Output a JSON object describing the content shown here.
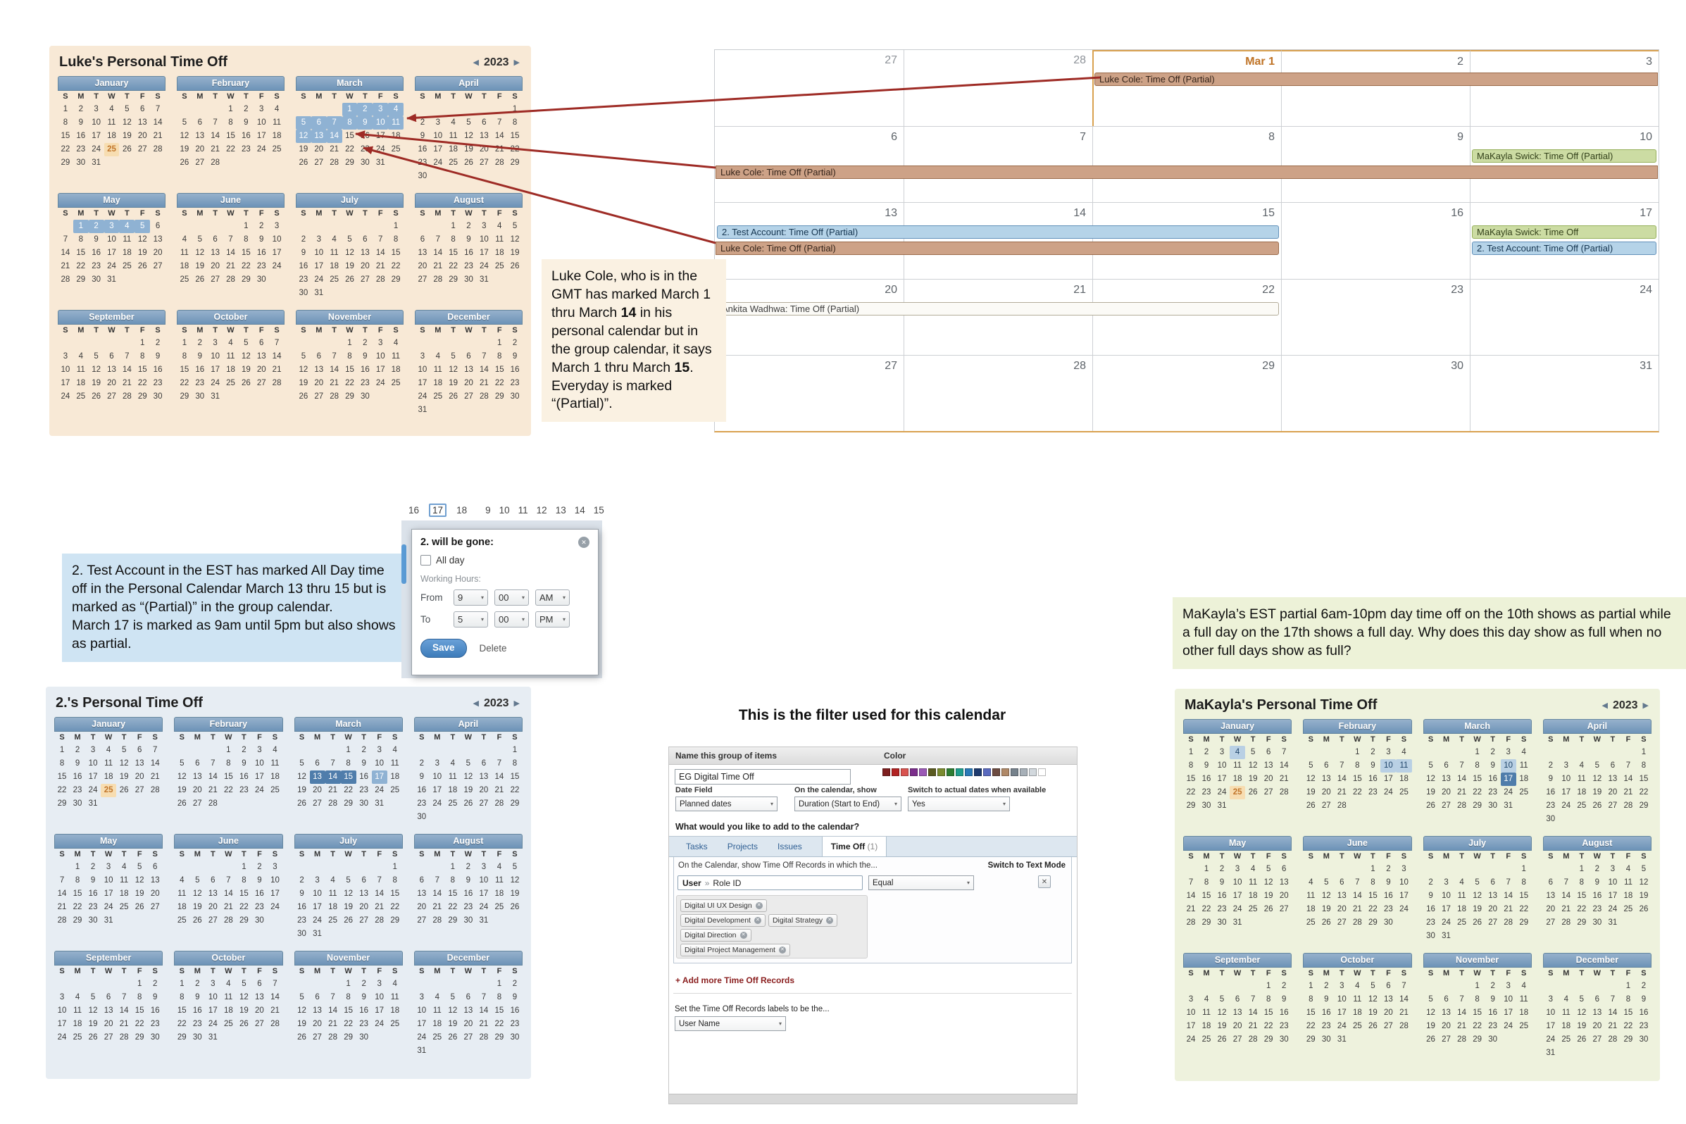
{
  "colors": {
    "page_bg": "#ffffff",
    "luke_cal_bg": "#f8e9d6",
    "test_cal_bg": "#e7edf3",
    "makayla_cal_bg": "#eef2dd",
    "note_luke_bg": "#faf1e2",
    "note_test_bg": "#cfe4f3",
    "note_makayla_bg": "#edf2d8",
    "month_header_blue": "#7b9cbe",
    "highlight_mid": "#8fb2d3",
    "highlight_full": "#4f7dab",
    "highlight_light": "#b9d0e4",
    "today_orange": "#c1752a",
    "arrow_red": "#9e2b25",
    "month_accent_orange": "#d9a14f",
    "events": {
      "luke": {
        "bg": "#cda287",
        "border": "#9b6a49",
        "text": "#35241a"
      },
      "makayla": {
        "bg": "#ccdca3",
        "border": "#96b05b",
        "text": "#33411a"
      },
      "test": {
        "bg": "#b5d3e8",
        "border": "#6291ba",
        "text": "#14344f"
      },
      "plain": {
        "bg": "#fbfaf6",
        "border": "#b3ac99",
        "text": "#3c3c3c"
      }
    }
  },
  "dow": [
    "S",
    "M",
    "T",
    "W",
    "T",
    "F",
    "S"
  ],
  "month_defs": [
    {
      "name": "January",
      "start": 0,
      "days": 31
    },
    {
      "name": "February",
      "start": 3,
      "days": 28
    },
    {
      "name": "March",
      "start": 3,
      "days": 31
    },
    {
      "name": "April",
      "start": 6,
      "days": 30
    },
    {
      "name": "May",
      "start": 1,
      "days": 31
    },
    {
      "name": "June",
      "start": 4,
      "days": 30
    },
    {
      "name": "July",
      "start": 6,
      "days": 31
    },
    {
      "name": "August",
      "start": 2,
      "days": 31
    },
    {
      "name": "September",
      "start": 5,
      "days": 30
    },
    {
      "name": "October",
      "start": 0,
      "days": 31
    },
    {
      "name": "November",
      "start": 3,
      "days": 30
    },
    {
      "name": "December",
      "start": 5,
      "days": 31
    }
  ],
  "calendars": {
    "luke": {
      "title": "Luke's Personal Time Off",
      "year": "2023",
      "highlights": [
        {
          "month": "January",
          "days": [
            25
          ],
          "style": "today"
        },
        {
          "month": "March",
          "days": [
            1,
            2,
            3,
            4,
            5,
            6,
            7,
            8,
            9,
            10,
            11,
            12,
            13,
            14
          ],
          "style": "hl"
        },
        {
          "month": "May",
          "days": [
            1,
            2,
            3,
            4,
            5
          ],
          "style": "hl"
        }
      ]
    },
    "test": {
      "title": "2.'s Personal Time Off",
      "year": "2023",
      "highlights": [
        {
          "month": "January",
          "days": [
            25
          ],
          "style": "today"
        },
        {
          "month": "March",
          "days": [
            13,
            14,
            15
          ],
          "style": "full"
        },
        {
          "month": "March",
          "days": [
            17
          ],
          "style": "hl"
        }
      ]
    },
    "makayla": {
      "title": "MaKayla's Personal Time Off",
      "year": "2023",
      "highlights": [
        {
          "month": "January",
          "days": [
            25
          ],
          "style": "today"
        },
        {
          "month": "January",
          "days": [
            4
          ],
          "style": "lt"
        },
        {
          "month": "February",
          "days": [
            10,
            11
          ],
          "style": "lt"
        },
        {
          "month": "March",
          "days": [
            10
          ],
          "style": "lt"
        },
        {
          "month": "March",
          "days": [
            17
          ],
          "style": "full"
        }
      ]
    }
  },
  "group_calendar": {
    "weeks": [
      {
        "days": [
          {
            "n": "27",
            "outside": true
          },
          {
            "n": "28",
            "outside": true
          },
          {
            "n": "Mar 1",
            "accent": true
          },
          {
            "n": "2"
          },
          {
            "n": "3"
          }
        ],
        "events": [
          {
            "label": "Luke Cole: Time Off (Partial)",
            "type": "luke",
            "start": 2,
            "end": 4,
            "slot": 0,
            "br": true
          }
        ]
      },
      {
        "days": [
          {
            "n": "6"
          },
          {
            "n": "7"
          },
          {
            "n": "8"
          },
          {
            "n": "9"
          },
          {
            "n": "10"
          }
        ],
        "events": [
          {
            "label": "MaKayla Swick: Time Off (Partial)",
            "type": "makayla",
            "start": 4,
            "end": 4,
            "slot": 0
          },
          {
            "label": "Luke Cole: Time Off (Partial)",
            "type": "luke",
            "start": 0,
            "end": 4,
            "slot": 1,
            "bl": true,
            "br": true
          }
        ]
      },
      {
        "days": [
          {
            "n": "13"
          },
          {
            "n": "14"
          },
          {
            "n": "15"
          },
          {
            "n": "16"
          },
          {
            "n": "17"
          }
        ],
        "events": [
          {
            "label": "2. Test Account: Time Off (Partial)",
            "type": "test",
            "start": 0,
            "end": 2,
            "slot": 0
          },
          {
            "label": "Luke Cole: Time Off (Partial)",
            "type": "luke",
            "start": 0,
            "end": 2,
            "slot": 1,
            "bl": true
          },
          {
            "label": "MaKayla Swick: Time Off",
            "type": "makayla",
            "start": 4,
            "end": 4,
            "slot": 0
          },
          {
            "label": "2. Test Account: Time Off (Partial)",
            "type": "test",
            "start": 4,
            "end": 4,
            "slot": 1
          }
        ]
      },
      {
        "days": [
          {
            "n": "20"
          },
          {
            "n": "21"
          },
          {
            "n": "22"
          },
          {
            "n": "23"
          },
          {
            "n": "24"
          }
        ],
        "events": [
          {
            "label": "Ankita Wadhwa: Time Off (Partial)",
            "type": "plain",
            "start": 0,
            "end": 2,
            "slot": 0
          }
        ]
      },
      {
        "days": [
          {
            "n": "27"
          },
          {
            "n": "28"
          },
          {
            "n": "29"
          },
          {
            "n": "30"
          },
          {
            "n": "31"
          }
        ],
        "events": []
      }
    ]
  },
  "notes": {
    "luke": {
      "lines": [
        [
          {
            "t": "Luke Cole, who is in the GMT has marked March 1 thru March "
          },
          {
            "t": "14",
            "b": true
          },
          {
            "t": " in his personal calendar but in the group calendar, it says March 1 thru March "
          },
          {
            "t": "15",
            "b": true
          },
          {
            "t": ". Everyday is marked “(Partial)”."
          }
        ]
      ]
    },
    "test": {
      "lines": [
        [
          {
            "t": "2. Test Account in the EST has marked All Day time off in the Personal Calendar March 13 thru 15 but is marked as “(Partial)” in the group calendar."
          }
        ],
        [
          {
            "t": "March 17 is marked as 9am until 5pm but also shows as partial."
          }
        ]
      ]
    },
    "makayla": {
      "lines": [
        [
          {
            "t": "MaKayla’s EST partial 6am-10pm day time off on the 10th shows as partial while a full day on the 17th shows a full day. Why does this day show as full when no other full days show as full?"
          }
        ]
      ]
    }
  },
  "popup": {
    "strip_left": [
      "16",
      "17",
      "18"
    ],
    "strip_left_selected": "17",
    "strip_right": [
      "9",
      "10",
      "11",
      "12",
      "13",
      "14",
      "15"
    ],
    "title": "2. will be gone:",
    "all_day_label": "All day",
    "working_hours_label": "Working Hours:",
    "from_label": "From",
    "to_label": "To",
    "from": [
      "9",
      "00",
      "AM"
    ],
    "to": [
      "5",
      "00",
      "PM"
    ],
    "save_label": "Save",
    "delete_label": "Delete"
  },
  "filter": {
    "heading": "This is the filter used for this calendar",
    "name_label": "Name this group of items",
    "name_value": "EG Digital Time Off",
    "color_label": "Color",
    "swatches": [
      "#7e1f1f",
      "#b22222",
      "#d9534f",
      "#7b2d8b",
      "#9b59b6",
      "#5a5a20",
      "#7a8b2f",
      "#2e7d32",
      "#1f9e8e",
      "#2a7ab8",
      "#1d3a6e",
      "#5a6abf",
      "#6d4c41",
      "#b08968",
      "#76828c",
      "#a7b0b8",
      "#d2d8dd",
      "#ffffff"
    ],
    "fields": [
      {
        "label": "Date Field",
        "value": "Planned dates"
      },
      {
        "label": "On the calendar, show",
        "value": "Duration (Start to End)"
      },
      {
        "label": "Switch to actual dates when available",
        "value": "Yes"
      }
    ],
    "add_question": "What would you like to add to the calendar?",
    "tabs": [
      "Tasks",
      "Projects",
      "Issues"
    ],
    "selected_tab": "Time Off",
    "selected_tab_count": "(1)",
    "records_intro": "On the Calendar, show Time Off Records in which the...",
    "text_mode_link": "Switch to Text Mode",
    "field_selector": {
      "primary": "User",
      "separator": "»",
      "secondary": "Role ID"
    },
    "operator": "Equal",
    "chips_rows": [
      [
        "Digital UI UX Design"
      ],
      [
        "Digital Development",
        "Digital Strategy"
      ],
      [
        "Digital Direction"
      ],
      [
        "Digital Project Management"
      ]
    ],
    "add_more_link": "+ Add more Time Off Records",
    "labels_text": "Set the Time Off Records labels to be the...",
    "labels_value": "User Name"
  }
}
